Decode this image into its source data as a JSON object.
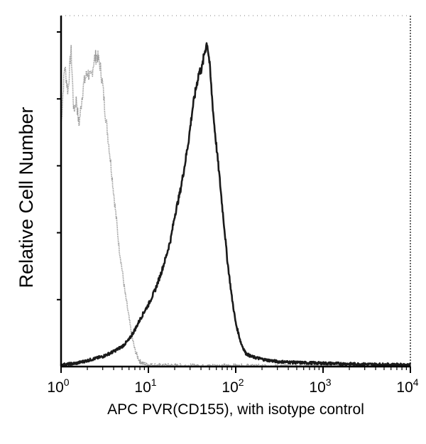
{
  "chart_data": {
    "type": "line",
    "title": "",
    "xlabel": "APC PVR(CD155), with isotype control",
    "ylabel": "Relative Cell Number",
    "x_scale": "log",
    "xlim": [
      1,
      10000
    ],
    "ylim": [
      0,
      100
    ],
    "x_ticks": [
      {
        "base": "10",
        "exp": "0",
        "value": 1
      },
      {
        "base": "10",
        "exp": "1",
        "value": 10
      },
      {
        "base": "10",
        "exp": "2",
        "value": 100
      },
      {
        "base": "10",
        "exp": "3",
        "value": 1000
      },
      {
        "base": "10",
        "exp": "4",
        "value": 10000
      }
    ],
    "grid": false,
    "legend": "none",
    "series": [
      {
        "role": "isotype-control",
        "color": "#9a9a9a",
        "x": [
          1.0,
          1.1,
          1.2,
          1.3,
          1.4,
          1.5,
          1.6,
          1.8,
          2.0,
          2.2,
          2.4,
          2.6,
          2.8,
          3.0,
          3.2,
          3.4,
          3.6,
          3.8,
          4.0,
          4.3,
          4.6,
          5.0,
          5.4,
          5.8,
          6.2,
          6.6,
          7.0,
          7.5,
          8.0,
          9.0,
          10,
          12,
          15,
          20,
          30,
          50,
          100,
          200,
          500,
          1000,
          3000,
          10000
        ],
        "y": [
          72,
          90,
          82,
          95,
          76,
          80,
          72,
          84,
          88,
          86,
          92,
          93,
          90,
          84,
          76,
          70,
          64,
          58,
          52,
          44,
          36,
          29,
          22,
          17,
          12,
          8,
          5,
          3,
          1.5,
          0.8,
          0.6,
          0.4,
          0.3,
          0.3,
          0.2,
          0.2,
          0.2,
          0.1,
          0.1,
          0.1,
          0.1,
          0.1
        ]
      },
      {
        "role": "APC PVR(CD155)",
        "color": "#1a1a1a",
        "x": [
          1.0,
          1.5,
          2.0,
          3.0,
          4.0,
          5.0,
          6.0,
          7.0,
          8.0,
          9.0,
          10,
          12,
          14,
          16,
          18,
          20,
          23,
          26,
          29,
          32,
          35,
          38,
          41,
          44,
          47,
          50,
          53,
          56,
          60,
          65,
          70,
          75,
          80,
          90,
          100,
          115,
          130,
          150,
          180,
          220,
          300,
          500,
          1000,
          2000,
          5000,
          10000
        ],
        "y": [
          0.5,
          1.0,
          1.8,
          3.0,
          4.5,
          6.0,
          8.0,
          11.0,
          14.0,
          16.5,
          18.5,
          23.0,
          28.0,
          33.0,
          38.0,
          45.0,
          52.0,
          60.0,
          68.0,
          77.0,
          83.0,
          88.0,
          89.0,
          94.0,
          97.0,
          91.0,
          82.0,
          74.0,
          66.0,
          57.0,
          48.0,
          40.0,
          32.0,
          21.0,
          13.0,
          7.0,
          4.0,
          3.0,
          2.5,
          2.0,
          1.5,
          1.2,
          1.0,
          0.8,
          0.6,
          0.5
        ]
      }
    ]
  }
}
